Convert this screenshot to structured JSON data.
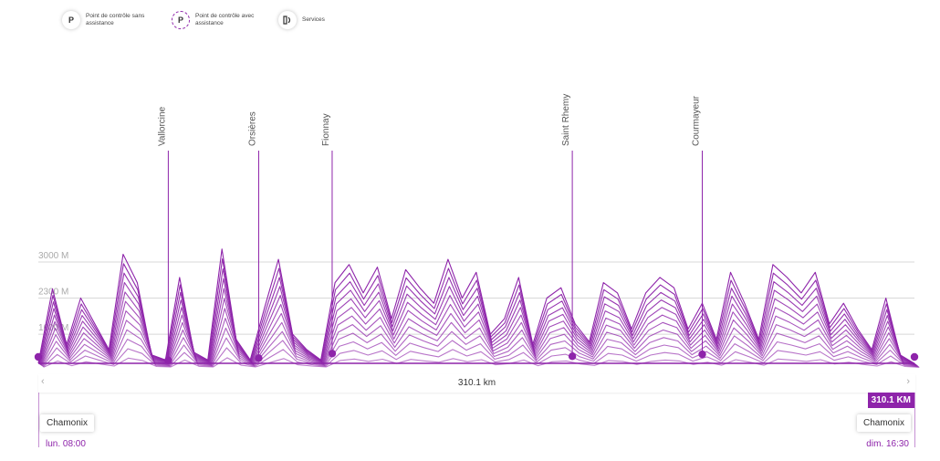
{
  "legend": [
    {
      "icon": "parking-unassisted-icon",
      "badge": "P",
      "label": "Point de contrôle sans assistance"
    },
    {
      "icon": "parking-assisted-icon",
      "badge": "P",
      "label": "Point de contrôle avec assistance"
    },
    {
      "icon": "services-icon",
      "badge": "",
      "label": "Services"
    }
  ],
  "colors": {
    "accent": "#8e24aa",
    "grid": "#d8d8d8"
  },
  "chart_data": {
    "type": "area",
    "title": "",
    "xlabel": "",
    "ylabel": "",
    "y_unit": "M",
    "ylim": [
      0,
      3300
    ],
    "yticks": [
      {
        "value": 3000,
        "label": "3000 M"
      },
      {
        "value": 2300,
        "label": "2300 M"
      },
      {
        "value": 1600,
        "label": "1600 M"
      }
    ],
    "x_range_km": [
      0,
      310.1
    ],
    "series": [
      {
        "x": [
          0,
          5,
          10,
          15,
          20,
          25,
          30,
          35,
          40,
          45,
          50,
          55,
          60,
          65,
          70,
          75,
          80,
          85,
          90,
          95,
          100,
          105,
          110,
          115,
          120,
          125,
          130,
          135,
          140,
          145,
          150,
          155,
          160,
          165,
          170,
          175,
          180,
          185,
          190,
          195,
          200,
          205,
          210,
          215,
          220,
          225,
          230,
          235,
          240,
          245,
          250,
          255,
          260,
          265,
          270,
          275,
          280,
          285,
          290,
          295,
          300,
          305,
          310
        ],
        "y": [
          1035,
          2480,
          1400,
          2300,
          1800,
          1300,
          3150,
          2600,
          1200,
          1100,
          2700,
          1250,
          1100,
          3250,
          1500,
          1100,
          2100,
          3050,
          1600,
          1300,
          1100,
          2600,
          2950,
          2400,
          2900,
          1900,
          2850,
          2500,
          2200,
          3050,
          2300,
          2800,
          1600,
          1900,
          2700,
          1400,
          2300,
          2500,
          1800,
          1450,
          2600,
          2400,
          1700,
          2400,
          2700,
          2500,
          1700,
          2200,
          1500,
          2800,
          2200,
          1500,
          2950,
          2700,
          2400,
          2800,
          1800,
          2200,
          1700,
          1300,
          2300,
          1200,
          1035
        ]
      }
    ],
    "waypoints": [
      {
        "name": "Vallorcine",
        "km": 46
      },
      {
        "name": "Orsières",
        "km": 78
      },
      {
        "name": "Fionnay",
        "km": 104
      },
      {
        "name": "Saint Rhemy",
        "km": 189
      },
      {
        "name": "Courmayeur",
        "km": 235
      }
    ],
    "grid": true
  },
  "nav": {
    "distance": "310.1 km",
    "left_arrow": "‹",
    "right_arrow": "›"
  },
  "total_badge": "310.1 KM",
  "start": {
    "name": "Chamonix",
    "time": "lun. 08:00"
  },
  "end": {
    "name": "Chamonix",
    "time": "dim. 16:30"
  }
}
